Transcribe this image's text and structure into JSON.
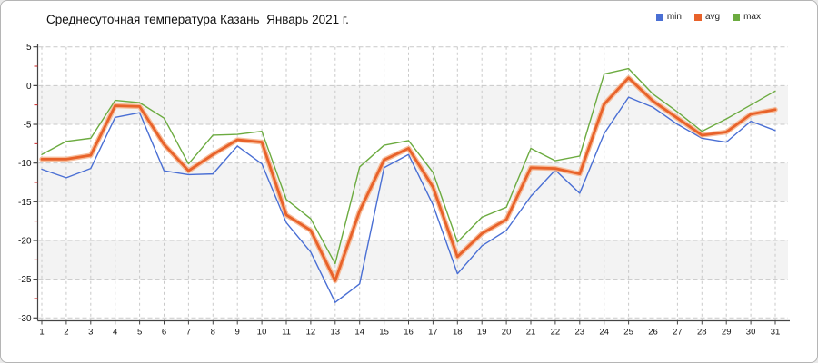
{
  "chart_data": {
    "type": "line",
    "title": "Среднесуточная температура Казань  Январь 2021 г.",
    "x": [
      1,
      2,
      3,
      4,
      5,
      6,
      7,
      8,
      9,
      10,
      11,
      12,
      13,
      14,
      15,
      16,
      17,
      18,
      19,
      20,
      21,
      22,
      23,
      24,
      25,
      26,
      27,
      28,
      29,
      30,
      31
    ],
    "xlabel": "",
    "ylabel": "",
    "ylim": [
      -30,
      5
    ],
    "y_ticks": [
      5,
      0,
      -5,
      -10,
      -15,
      -20,
      -25,
      -30
    ],
    "y_minor_tick_step": 2.5,
    "grid": "dashed",
    "legend_position": "top-right",
    "shaded_bands": [
      [
        0,
        -5
      ],
      [
        -10,
        -15
      ],
      [
        -20,
        -25
      ]
    ],
    "series": [
      {
        "name": "min",
        "color": "#4a6fd4",
        "values": [
          -10.8,
          -11.9,
          -10.7,
          -4.1,
          -3.5,
          -11.0,
          -11.5,
          -11.4,
          -7.8,
          -10.1,
          -17.7,
          -21.5,
          -28.0,
          -25.6,
          -10.6,
          -8.9,
          -15.4,
          -24.3,
          -20.7,
          -18.7,
          -14.3,
          -10.9,
          -13.9,
          -6.2,
          -1.5,
          -2.8,
          -5.0,
          -6.8,
          -7.3,
          -4.6,
          -5.8
        ]
      },
      {
        "name": "avg",
        "color": "#e8622a",
        "halo": "#f6b28a",
        "values": [
          -9.5,
          -9.5,
          -9.0,
          -2.6,
          -2.7,
          -7.6,
          -11.0,
          -8.9,
          -7.0,
          -7.3,
          -16.7,
          -18.7,
          -25.2,
          -16.2,
          -9.6,
          -8.1,
          -13.1,
          -22.1,
          -19.1,
          -17.3,
          -10.6,
          -10.7,
          -11.4,
          -2.4,
          1.0,
          -2.0,
          -4.2,
          -6.4,
          -6.0,
          -3.7,
          -3.1
        ]
      },
      {
        "name": "max",
        "color": "#6cab40",
        "values": [
          -8.9,
          -7.2,
          -6.8,
          -1.9,
          -2.2,
          -4.2,
          -10.1,
          -6.4,
          -6.3,
          -5.9,
          -14.7,
          -17.2,
          -23.0,
          -10.5,
          -7.7,
          -7.1,
          -11.2,
          -20.2,
          -17.0,
          -15.7,
          -8.1,
          -9.7,
          -9.1,
          1.5,
          2.2,
          -1.1,
          -3.4,
          -5.9,
          -4.3,
          -2.5,
          -0.7
        ]
      }
    ],
    "style": {
      "band_fill": "#f3f3f3",
      "grid_color": "#c9c9c9",
      "axis_color": "#444444",
      "minor_tick_color": "#cc2222",
      "label_color": "#111111"
    }
  }
}
